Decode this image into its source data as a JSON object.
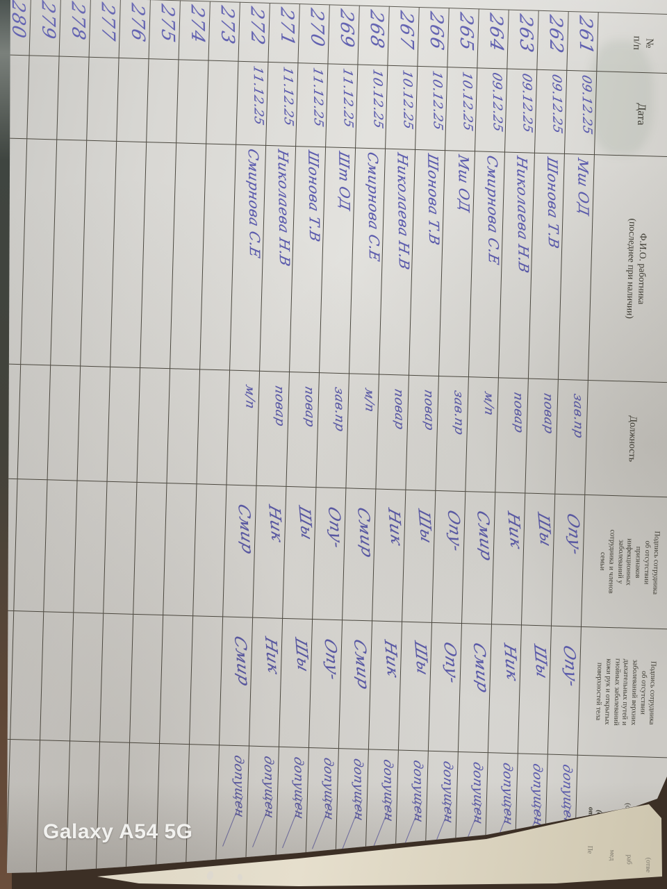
{
  "photo": {
    "watermark": "Galaxy A54 5G",
    "under_page_fragments": [
      "Пе",
      "мед",
      "раб",
      "(отве"
    ],
    "colors": {
      "ink": "#5a5aad",
      "grid_line": "#4b483f",
      "page": "#dcdbd7",
      "table_surface": "#3a342c",
      "under_page": "#e6dfcd",
      "watermark": "#fafaf8"
    }
  },
  "table": {
    "headers": {
      "num": "№\nп/п",
      "date": "Дата",
      "name": "Ф.И.О. работника\n(последнее при наличии)",
      "position": "Должность",
      "sign1": "Подпись сотрудника\nоб отсутствии\nпризнаков\nинфекционных\nзаболеваний у\nсотрудника и членов\nсемьи",
      "sign2": "Подпись сотрудника\nоб отсутствии\nзаболеваний верхних\nдыхательных путей и\nгнойных заболеваний\nкожи рук и открытых\nповерхностей тела",
      "result_main": "Результат осмотра\nмедицинским\nработником\n(ответственным\nлицом)",
      "result_sub": "(допущен /\nотстранен)"
    },
    "rows": [
      {
        "num": "261",
        "date": "09.12.25",
        "name": "Мш ОД",
        "position": "зав.пр",
        "sign1": "Опу-",
        "sign2": "Опу-",
        "result": "допущен"
      },
      {
        "num": "262",
        "date": "09.12.25",
        "name": "Шонова Т.В",
        "position": "повар",
        "sign1": "Шы",
        "sign2": "Шы",
        "result": "допущен"
      },
      {
        "num": "263",
        "date": "09.12.25",
        "name": "Николаева Н.В",
        "position": "повар",
        "sign1": "Ник",
        "sign2": "Ник",
        "result": "допущен"
      },
      {
        "num": "264",
        "date": "09.12.25",
        "name": "Смирнова С.Е",
        "position": "м/п",
        "sign1": "Смир",
        "sign2": "Смир",
        "result": "допущен"
      },
      {
        "num": "265",
        "date": "10.12.25",
        "name": "Мш ОД",
        "position": "зав.пр",
        "sign1": "Опу-",
        "sign2": "Опу-",
        "result": "допущен"
      },
      {
        "num": "266",
        "date": "10.12.25",
        "name": "Шонова Т.В",
        "position": "повар",
        "sign1": "Шы",
        "sign2": "Шы",
        "result": "допущен"
      },
      {
        "num": "267",
        "date": "10.12.25",
        "name": "Николаева Н.В",
        "position": "повар",
        "sign1": "Ник",
        "sign2": "Ник",
        "result": "допущен"
      },
      {
        "num": "268",
        "date": "10.12.25",
        "name": "Смирнова С.Е",
        "position": "м/п",
        "sign1": "Смир",
        "sign2": "Смир",
        "result": "допущен"
      },
      {
        "num": "269",
        "date": "11.12.25",
        "name": "Шт ОД",
        "position": "зав.пр",
        "sign1": "Опу-",
        "sign2": "Опу-",
        "result": "допущен"
      },
      {
        "num": "270",
        "date": "11.12.25",
        "name": "Шонова Т.В",
        "position": "повар",
        "sign1": "Шы",
        "sign2": "Шы",
        "result": "допущен"
      },
      {
        "num": "271",
        "date": "11.12.25",
        "name": "Николаева Н.В",
        "position": "повар",
        "sign1": "Ник",
        "sign2": "Ник",
        "result": "допущен"
      },
      {
        "num": "272",
        "date": "11.12.25",
        "name": "Смирнова С.Е",
        "position": "м/п",
        "sign1": "Смир",
        "sign2": "Смир",
        "result": "допущен"
      },
      {
        "num": "273",
        "date": "",
        "name": "",
        "position": "",
        "sign1": "",
        "sign2": "",
        "result": ""
      },
      {
        "num": "274",
        "date": "",
        "name": "",
        "position": "",
        "sign1": "",
        "sign2": "",
        "result": ""
      },
      {
        "num": "275",
        "date": "",
        "name": "",
        "position": "",
        "sign1": "",
        "sign2": "",
        "result": ""
      },
      {
        "num": "276",
        "date": "",
        "name": "",
        "position": "",
        "sign1": "",
        "sign2": "",
        "result": ""
      },
      {
        "num": "277",
        "date": "",
        "name": "",
        "position": "",
        "sign1": "",
        "sign2": "",
        "result": ""
      },
      {
        "num": "278",
        "date": "",
        "name": "",
        "position": "",
        "sign1": "",
        "sign2": "",
        "result": ""
      },
      {
        "num": "279",
        "date": "",
        "name": "",
        "position": "",
        "sign1": "",
        "sign2": "",
        "result": ""
      },
      {
        "num": "280",
        "date": "",
        "name": "",
        "position": "",
        "sign1": "",
        "sign2": "",
        "result": ""
      }
    ]
  }
}
